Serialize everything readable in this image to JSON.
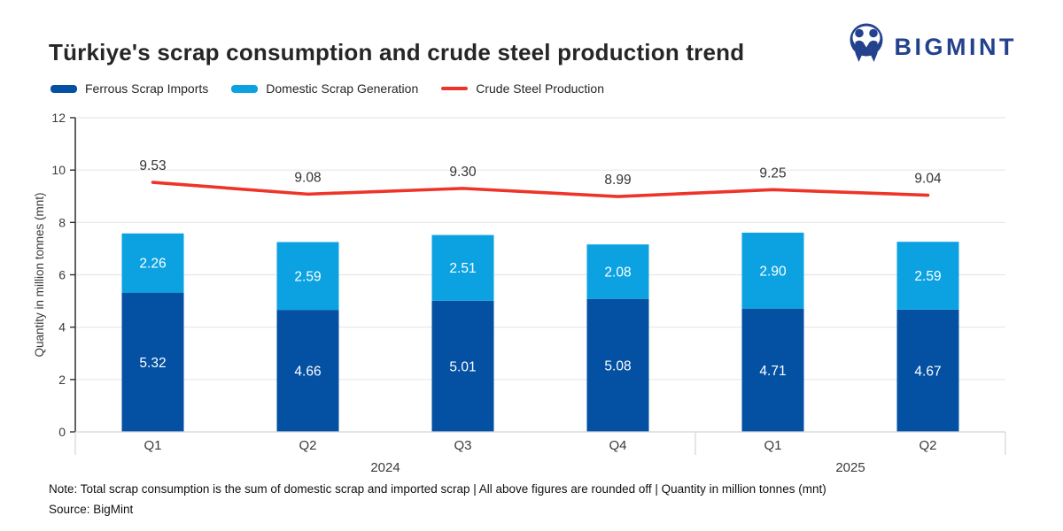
{
  "header": {
    "title": "Türkiye's scrap consumption and crude steel production trend",
    "brand_name": "BIGMINT",
    "brand_color": "#24418e"
  },
  "legend": {
    "items": [
      {
        "label": "Ferrous Scrap Imports",
        "color": "#0450a2",
        "shape": "bar"
      },
      {
        "label": "Domestic Scrap Generation",
        "color": "#0ca2e2",
        "shape": "bar"
      },
      {
        "label": "Crude Steel Production",
        "color": "#ee3429",
        "shape": "line"
      }
    ]
  },
  "chart_data": {
    "type": "bar",
    "subtype": "stacked-bars-with-line",
    "categories": [
      "Q1",
      "Q2",
      "Q3",
      "Q4",
      "Q1",
      "Q2"
    ],
    "category_groups": [
      {
        "label": "2024",
        "span": 4
      },
      {
        "label": "2025",
        "span": 2
      }
    ],
    "series": [
      {
        "name": "Ferrous Scrap Imports",
        "type": "bar",
        "stack": true,
        "color": "#0450a2",
        "values": [
          5.32,
          4.66,
          5.01,
          5.08,
          4.71,
          4.67
        ]
      },
      {
        "name": "Domestic Scrap Generation",
        "type": "bar",
        "stack": true,
        "color": "#0ca2e2",
        "values": [
          2.26,
          2.59,
          2.51,
          2.08,
          2.9,
          2.59
        ]
      },
      {
        "name": "Crude Steel Production",
        "type": "line",
        "color": "#ee3429",
        "values": [
          9.53,
          9.08,
          9.3,
          8.99,
          9.25,
          9.04
        ]
      }
    ],
    "title": "Türkiye's scrap consumption and crude steel production trend",
    "xlabel": "",
    "ylabel": "Quantity in million tonnes (mnt)",
    "ylim": [
      0,
      12
    ],
    "ytick_step": 2,
    "yticks": [
      0,
      2,
      4,
      6,
      8,
      10,
      12
    ],
    "grid": true,
    "legend_position": "top-left",
    "colors": {
      "gridline": "#e7e7e7",
      "axis": "#2f2f2f",
      "band_line": "#d8d8d8",
      "tick_text": "#3a3a3a",
      "bar_value_text": "#ffffff",
      "line_value_text": "#333333"
    }
  },
  "footer": {
    "note": "Note: Total scrap consumption is the sum of domestic scrap and imported scrap | All above figures are rounded off | Quantity in million tonnes (mnt)",
    "source": "Source: BigMint"
  }
}
